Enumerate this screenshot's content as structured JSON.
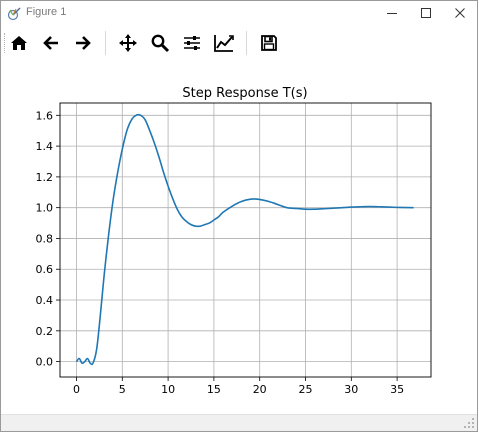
{
  "window": {
    "title": "Figure 1"
  },
  "toolbar": {
    "buttons": [
      {
        "name": "home-icon"
      },
      {
        "name": "back-arrow-icon"
      },
      {
        "name": "forward-arrow-icon"
      },
      {
        "name": "pan-move-icon"
      },
      {
        "name": "zoom-magnifier-icon"
      },
      {
        "name": "configure-subplots-icon"
      },
      {
        "name": "edit-axis-icon"
      },
      {
        "name": "save-disk-icon"
      }
    ]
  },
  "colors": {
    "line": "#1f77b4",
    "grid": "#b0b0b0",
    "axes": "#000000"
  },
  "chart_data": {
    "type": "line",
    "title": "Step Response T(s)",
    "xlabel": "",
    "ylabel": "",
    "xlim": [
      -1.8,
      38.7
    ],
    "ylim": [
      -0.1,
      1.68
    ],
    "xticks": [
      0,
      5,
      10,
      15,
      20,
      25,
      30,
      35
    ],
    "xtick_labels": [
      "0",
      "5",
      "10",
      "15",
      "20",
      "25",
      "30",
      "35"
    ],
    "yticks": [
      0.0,
      0.2,
      0.4,
      0.6,
      0.8,
      1.0,
      1.2,
      1.4,
      1.6
    ],
    "ytick_labels": [
      "0.0",
      "0.2",
      "0.4",
      "0.6",
      "0.8",
      "1.0",
      "1.2",
      "1.4",
      "1.6"
    ],
    "grid": true,
    "series": [
      {
        "x": [
          0,
          0.3,
          0.6,
          0.9,
          1.2,
          1.5,
          1.8,
          2.2,
          2.6,
          3.0,
          3.5,
          4.0,
          4.5,
          5.0,
          5.5,
          6.0,
          6.5,
          7.0,
          7.5,
          8.0,
          8.5,
          9.0,
          9.5,
          10.0,
          10.5,
          11.0,
          11.5,
          12.0,
          12.5,
          13.0,
          13.5,
          14.0,
          14.5,
          15.0,
          15.5,
          16.0,
          17.0,
          18.0,
          19.0,
          19.8,
          21.0,
          22.0,
          23.0,
          24.0,
          25.0,
          26.0,
          27.0,
          28.0,
          29.0,
          30.0,
          31.0,
          32.0,
          33.0,
          34.0,
          35.0,
          36.0,
          36.8
        ],
        "y": [
          0.0,
          0.02,
          -0.01,
          0.0,
          0.02,
          -0.01,
          -0.01,
          0.08,
          0.3,
          0.55,
          0.82,
          1.05,
          1.23,
          1.38,
          1.5,
          1.57,
          1.6,
          1.6,
          1.57,
          1.5,
          1.42,
          1.33,
          1.23,
          1.14,
          1.06,
          0.99,
          0.94,
          0.91,
          0.89,
          0.88,
          0.88,
          0.89,
          0.9,
          0.92,
          0.94,
          0.97,
          1.01,
          1.04,
          1.055,
          1.055,
          1.04,
          1.02,
          1.0,
          0.995,
          0.99,
          0.99,
          0.993,
          0.997,
          1.0,
          1.004,
          1.006,
          1.007,
          1.006,
          1.004,
          1.002,
          1.001,
          1.0
        ]
      }
    ]
  }
}
